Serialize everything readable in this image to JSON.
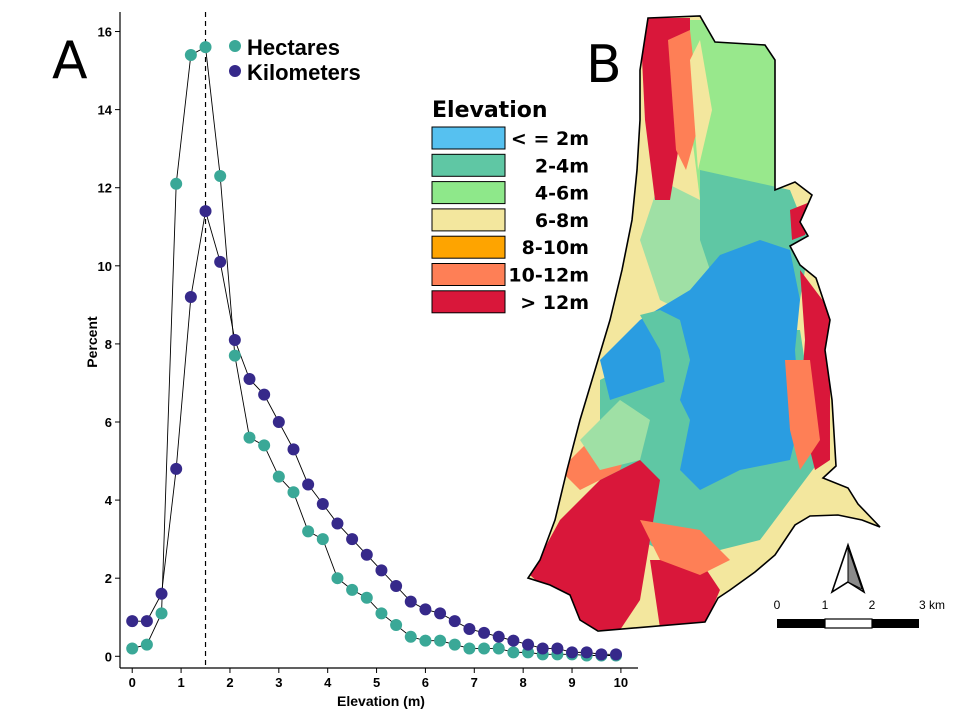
{
  "panel_a_letter": "A",
  "panel_b_letter": "B",
  "chart_data": {
    "type": "scatter",
    "xlabel": "Elevation (m)",
    "ylabel": "Percent",
    "xlim": [
      -0.25,
      10.35
    ],
    "ylim": [
      -0.3,
      16.5
    ],
    "x_ticks": [
      0,
      1,
      2,
      3,
      4,
      5,
      6,
      7,
      8,
      9,
      10
    ],
    "y_ticks": [
      0,
      2,
      4,
      6,
      8,
      10,
      12,
      14,
      16
    ],
    "reference_line_x": 1.5,
    "grid": false,
    "legend_position": "top",
    "series": [
      {
        "name": "Hectares",
        "color": "#3aa897",
        "x": [
          0,
          0.3,
          0.6,
          0.9,
          1.2,
          1.5,
          1.8,
          2.1,
          2.4,
          2.7,
          3.0,
          3.3,
          3.6,
          3.9,
          4.2,
          4.5,
          4.8,
          5.1,
          5.4,
          5.7,
          6.0,
          6.3,
          6.6,
          6.9,
          7.2,
          7.5,
          7.8,
          8.1,
          8.4,
          8.7,
          9.0,
          9.3,
          9.6,
          9.9
        ],
        "y": [
          0.2,
          0.3,
          1.1,
          12.1,
          15.4,
          15.6,
          12.3,
          7.7,
          5.6,
          5.4,
          4.6,
          4.2,
          3.2,
          3.0,
          2.0,
          1.7,
          1.5,
          1.1,
          0.8,
          0.5,
          0.4,
          0.4,
          0.3,
          0.2,
          0.2,
          0.2,
          0.1,
          0.1,
          0.05,
          0.05,
          0.05,
          0.02,
          0.02,
          0.02
        ]
      },
      {
        "name": "Kilometers",
        "color": "#36298a",
        "x": [
          0,
          0.3,
          0.6,
          0.9,
          1.2,
          1.5,
          1.8,
          2.1,
          2.4,
          2.7,
          3.0,
          3.3,
          3.6,
          3.9,
          4.2,
          4.5,
          4.8,
          5.1,
          5.4,
          5.7,
          6.0,
          6.3,
          6.6,
          6.9,
          7.2,
          7.5,
          7.8,
          8.1,
          8.4,
          8.7,
          9.0,
          9.3,
          9.6,
          9.9
        ],
        "y": [
          0.9,
          0.9,
          1.6,
          4.8,
          9.2,
          11.4,
          10.1,
          8.1,
          7.1,
          6.7,
          6.0,
          5.3,
          4.4,
          3.9,
          3.4,
          3.0,
          2.6,
          2.2,
          1.8,
          1.4,
          1.2,
          1.1,
          0.9,
          0.7,
          0.6,
          0.5,
          0.4,
          0.3,
          0.2,
          0.2,
          0.1,
          0.1,
          0.05,
          0.05
        ]
      }
    ]
  },
  "map_legend": {
    "title": "Elevation",
    "classes": [
      {
        "label": "< = 2m",
        "color": "#56c1f0"
      },
      {
        "label": "2-4m",
        "color": "#5fc7a4"
      },
      {
        "label": "4-6m",
        "color": "#8ee88a"
      },
      {
        "label": "6-8m",
        "color": "#f3e79e"
      },
      {
        "label": "8-10m",
        "color": "#fea400"
      },
      {
        "label": "10-12m",
        "color": "#fe7f56"
      },
      {
        "label": "> 12m",
        "color": "#d9173a"
      }
    ]
  },
  "scale_bar": {
    "labels": [
      "0",
      "1",
      "2",
      "3 km"
    ]
  },
  "north_arrow": "north-arrow-icon"
}
